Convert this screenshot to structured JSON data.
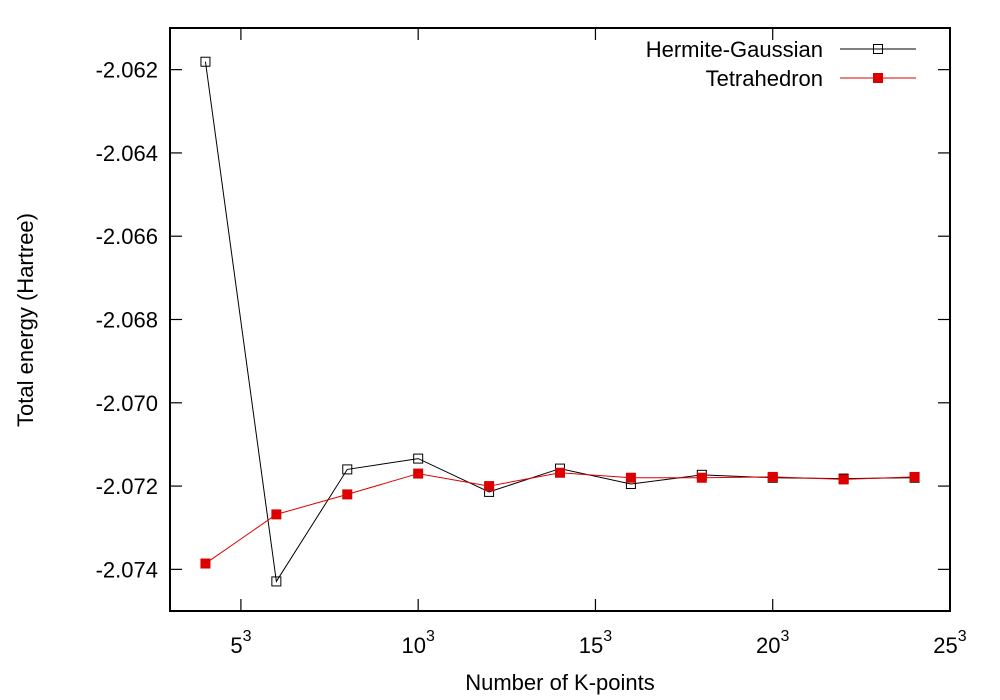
{
  "chart_data": {
    "type": "line",
    "title": "",
    "xlabel": "Number of K-points",
    "ylabel": "Total energy (Hartree)",
    "x_note": "x axis is the grid size n, with K-points = n^3",
    "xlim": [
      3,
      25
    ],
    "ylim": [
      -2.075,
      -2.061
    ],
    "x_ticks": [
      5,
      10,
      15,
      20,
      25
    ],
    "x_tick_labels": [
      {
        "base": "5",
        "exp": "3"
      },
      {
        "base": "10",
        "exp": "3"
      },
      {
        "base": "15",
        "exp": "3"
      },
      {
        "base": "20",
        "exp": "3"
      },
      {
        "base": "25",
        "exp": "3"
      }
    ],
    "y_ticks": [
      -2.062,
      -2.064,
      -2.066,
      -2.068,
      -2.07,
      -2.072,
      -2.074
    ],
    "y_tick_labels": [
      "-2.062",
      "-2.064",
      "-2.066",
      "-2.068",
      "-2.070",
      "-2.072",
      "-2.074"
    ],
    "grid": false,
    "legend_position": "top-right",
    "x": [
      4,
      6,
      8,
      10,
      12,
      14,
      16,
      18,
      20,
      22,
      24
    ],
    "series": [
      {
        "name": "Hermite-Gaussian",
        "color": "#000000",
        "marker": "open-square",
        "values": [
          -2.06181,
          -2.07429,
          -2.0716,
          -2.07134,
          -2.07214,
          -2.07158,
          -2.07195,
          -2.07173,
          -2.0718,
          -2.07182,
          -2.0718
        ]
      },
      {
        "name": "Tetrahedron",
        "color": "#dd0000",
        "marker": "filled-square",
        "values": [
          -2.07386,
          -2.07268,
          -2.0722,
          -2.0717,
          -2.072,
          -2.07168,
          -2.0718,
          -2.0718,
          -2.07178,
          -2.07184,
          -2.07178
        ]
      }
    ]
  }
}
